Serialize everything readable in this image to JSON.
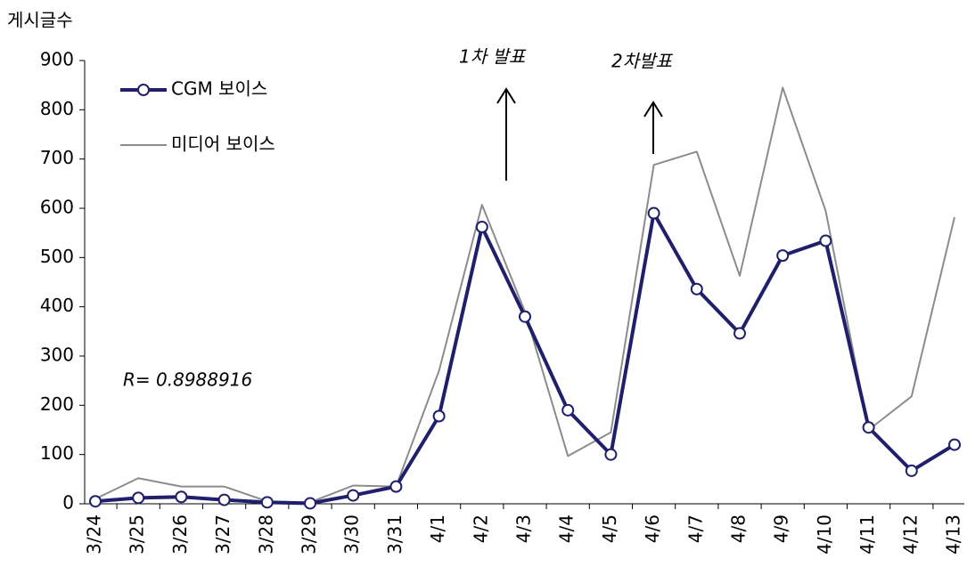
{
  "chart_data": {
    "type": "line",
    "y_label": "게시글수",
    "categories": [
      "3/24",
      "3/25",
      "3/26",
      "3/27",
      "3/28",
      "3/29",
      "3/30",
      "3/31",
      "4/1",
      "4/2",
      "4/3",
      "4/4",
      "4/5",
      "4/6",
      "4/7",
      "4/8",
      "4/9",
      "4/10",
      "4/11",
      "4/12",
      "4/13"
    ],
    "series": [
      {
        "name": "CGM 보이스",
        "color": "#1f1f6b",
        "values": [
          5,
          12,
          14,
          8,
          3,
          1,
          17,
          35,
          178,
          562,
          380,
          190,
          100,
          590,
          436,
          346,
          504,
          534,
          155,
          67,
          120
        ]
      },
      {
        "name": "미디어 보이스",
        "color": "#8c8c8c",
        "values": [
          10,
          52,
          35,
          35,
          5,
          3,
          37,
          35,
          270,
          607,
          390,
          97,
          145,
          688,
          715,
          463,
          845,
          595,
          150,
          218,
          582
        ]
      }
    ],
    "ylim": [
      0,
      900
    ],
    "yticks": [
      0,
      100,
      200,
      300,
      400,
      500,
      600,
      700,
      800,
      900
    ],
    "legend": "top-left",
    "annotations": [
      "1차 발표",
      "2차발표",
      "R= 0.8988916"
    ]
  }
}
